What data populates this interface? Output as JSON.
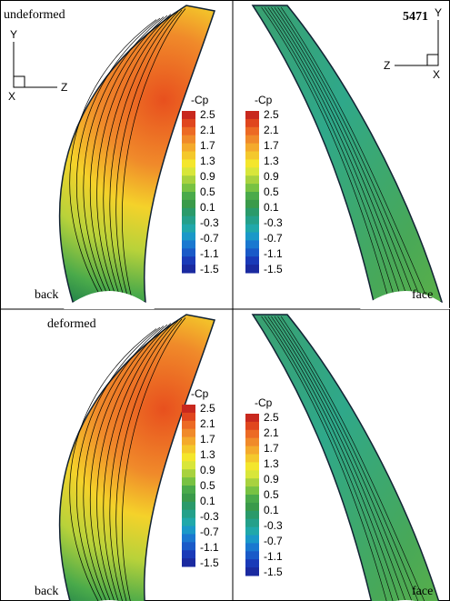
{
  "panels": [
    {
      "title": "undeformed",
      "side_label": "back",
      "colorbar": {
        "title": "-Cp",
        "labels": [
          "2.5",
          "2.1",
          "1.7",
          "1.3",
          "0.9",
          "0.5",
          "0.1",
          "-0.3",
          "-0.7",
          "-1.1",
          "-1.5"
        ]
      }
    },
    {
      "id": "5471",
      "side_label": "face",
      "colorbar": {
        "title": "-Cp",
        "labels": [
          "2.5",
          "2.1",
          "1.7",
          "1.3",
          "0.9",
          "0.5",
          "0.1",
          "-0.3",
          "-0.7",
          "-1.1",
          "-1.5"
        ]
      }
    },
    {
      "title": "deformed",
      "side_label": "back",
      "colorbar": {
        "title": "-Cp",
        "labels": [
          "2.5",
          "2.1",
          "1.7",
          "1.3",
          "0.9",
          "0.5",
          "0.1",
          "-0.3",
          "-0.7",
          "-1.1",
          "-1.5"
        ]
      }
    },
    {
      "side_label": "face",
      "colorbar": {
        "title": "-Cp",
        "labels": [
          "2.5",
          "2.1",
          "1.7",
          "1.3",
          "0.9",
          "0.5",
          "0.1",
          "-0.3",
          "-0.7",
          "-1.1",
          "-1.5"
        ]
      }
    }
  ],
  "left_triad": {
    "y": "Y",
    "z": "Z",
    "x": "X"
  },
  "right_triad": {
    "y": "Y",
    "z": "Z",
    "x": "X"
  }
}
